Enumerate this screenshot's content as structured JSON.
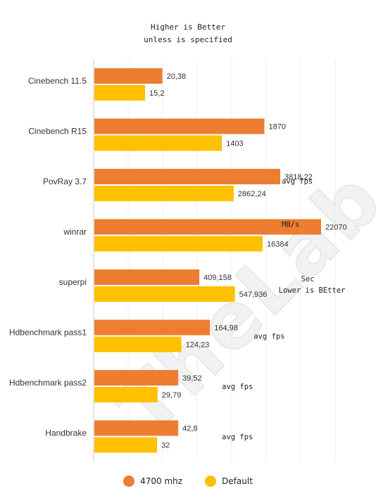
{
  "header": {
    "line1": "Higher is Better",
    "line2": "unless is specified"
  },
  "watermark": "TheLab.gr",
  "legend": [
    {
      "label": "4700 mhz",
      "color": "#ed7d31"
    },
    {
      "label": "Default",
      "color": "#ffc000"
    }
  ],
  "chart_data": {
    "type": "bar",
    "orientation": "horizontal",
    "categories": [
      "Cinebench 11.5",
      "Cinebench R15",
      "PovRay 3.7",
      "winrar",
      "superpi",
      "Hdbenchmark pass1",
      "Hdbenchmark pass2",
      "Handbrake"
    ],
    "series": [
      {
        "name": "4700 mhz",
        "color": "#ed7d31",
        "values": [
          20.38,
          1870,
          3818.22,
          22070,
          409.158,
          164.98,
          39.52,
          42.8
        ],
        "labels": [
          "20,38",
          "1870",
          "3818,22",
          "22070",
          "409,158",
          "164,98",
          "39,52",
          "42,8"
        ]
      },
      {
        "name": "Default",
        "color": "#ffc000",
        "values": [
          15.2,
          1403,
          2862.24,
          16384,
          547.936,
          124.23,
          29.79,
          32
        ],
        "labels": [
          "15,2",
          "1403",
          "2862,24",
          "16384",
          "547,936",
          "124,23",
          "29,79",
          "32"
        ]
      }
    ],
    "notes": [
      "",
      "",
      "avg fps",
      "MB/s",
      "Sec\nLower is BEtter",
      "avg fps",
      "avg fps",
      "avg fps"
    ],
    "grid": true,
    "legend_position": "bottom"
  }
}
